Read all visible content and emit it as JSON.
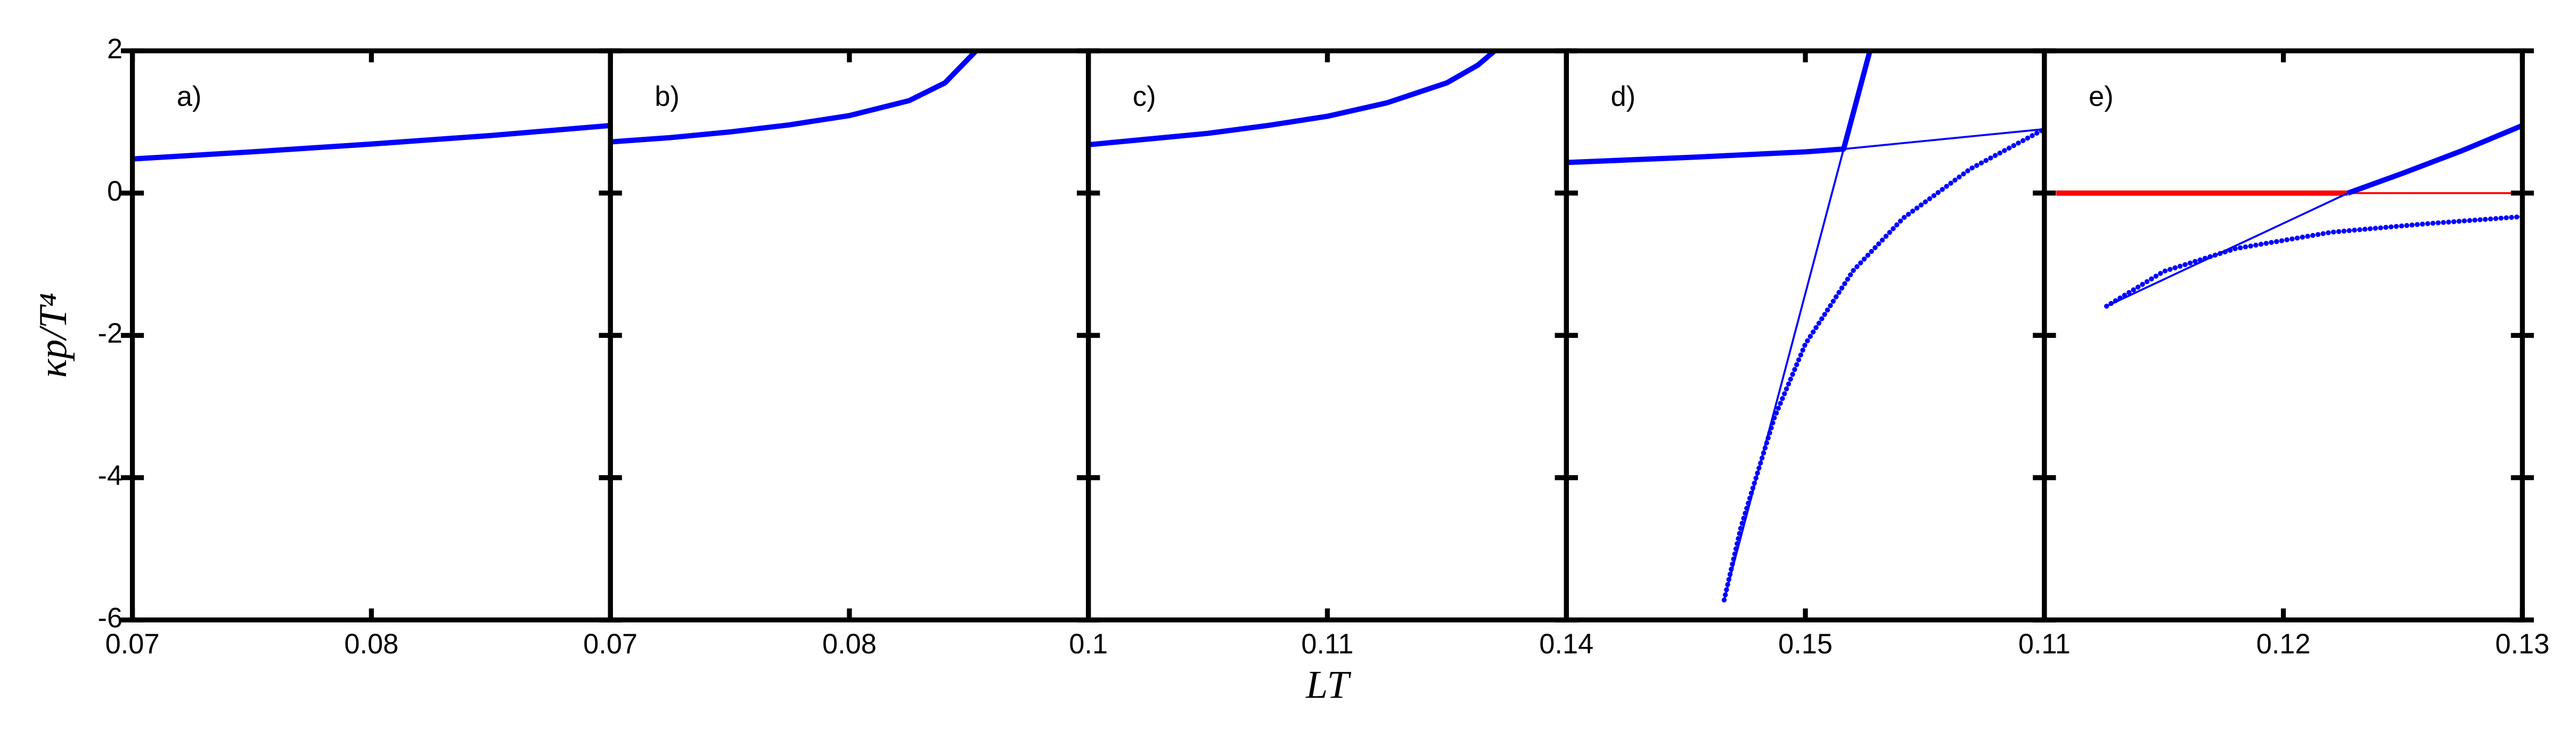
{
  "chart_data": [
    {
      "type": "line",
      "label": "a)",
      "ylabel": "κp/T⁴",
      "xlim": [
        0.07,
        0.09
      ],
      "xticks": [
        0.07,
        0.08
      ],
      "ylim": [
        -6,
        2
      ],
      "yticks": [
        -6,
        -4,
        -2,
        0,
        2
      ],
      "series": [
        {
          "color": "#0000ff",
          "style": "thick",
          "x": [
            0.07,
            0.075,
            0.08,
            0.085,
            0.09
          ],
          "values": [
            0.48,
            0.58,
            0.69,
            0.81,
            0.95
          ]
        }
      ]
    },
    {
      "type": "line",
      "label": "b)",
      "xlim": [
        0.07,
        0.09
      ],
      "xticks": [
        0.07,
        0.08
      ],
      "ylim": [
        -6,
        2
      ],
      "series": [
        {
          "color": "#0000ff",
          "style": "thick",
          "x": [
            0.07,
            0.0725,
            0.075,
            0.0775,
            0.08,
            0.0825,
            0.084,
            0.0853
          ],
          "values": [
            0.72,
            0.78,
            0.86,
            0.96,
            1.09,
            1.3,
            1.55,
            2.0
          ]
        }
      ]
    },
    {
      "type": "line",
      "label": "c)",
      "xlabel": "LT",
      "xlim": [
        0.1,
        0.12
      ],
      "xticks": [
        0.1,
        0.11
      ],
      "ylim": [
        -6,
        2
      ],
      "series": [
        {
          "color": "#0000ff",
          "style": "thick",
          "x": [
            0.1,
            0.1025,
            0.105,
            0.1075,
            0.11,
            0.1125,
            0.115,
            0.1163,
            0.117
          ],
          "values": [
            0.68,
            0.76,
            0.84,
            0.95,
            1.08,
            1.27,
            1.55,
            1.8,
            2.0
          ]
        }
      ]
    },
    {
      "type": "line",
      "label": "d)",
      "xlim": [
        0.14,
        0.16
      ],
      "xticks": [
        0.14,
        0.15
      ],
      "ylim": [
        -6,
        2
      ],
      "series": [
        {
          "color": "#0000ff",
          "style": "thick",
          "x": [
            0.14,
            0.145,
            0.15,
            0.1516,
            0.1527
          ],
          "values": [
            0.43,
            0.5,
            0.58,
            0.62,
            2.0
          ]
        },
        {
          "color": "#0000ff",
          "style": "thin",
          "x": [
            0.1466,
            0.1516,
            0.16
          ],
          "values": [
            -5.72,
            0.62,
            0.9
          ]
        },
        {
          "color": "#0000ff",
          "style": "dotted",
          "x": [
            0.1466,
            0.1473,
            0.1487,
            0.15,
            0.152,
            0.1541,
            0.1569,
            0.16
          ],
          "values": [
            -5.72,
            -4.7,
            -3.16,
            -2.12,
            -1.09,
            -0.35,
            0.34,
            0.9
          ]
        }
      ]
    },
    {
      "type": "line",
      "label": "e)",
      "xlim": [
        0.11,
        0.13
      ],
      "xticks": [
        0.11,
        0.12,
        0.13
      ],
      "ylim": [
        -6,
        2
      ],
      "series": [
        {
          "color": "#ff0000",
          "style": "thick",
          "x": [
            0.1105,
            0.1227
          ],
          "values": [
            0,
            0
          ]
        },
        {
          "color": "#ff0000",
          "style": "thin",
          "x": [
            0.1227,
            0.13
          ],
          "values": [
            0,
            0
          ]
        },
        {
          "color": "#0000ff",
          "style": "thick",
          "x": [
            0.1227,
            0.125,
            0.1275,
            0.13
          ],
          "values": [
            0,
            0.28,
            0.6,
            0.95
          ]
        },
        {
          "color": "#0000ff",
          "style": "thin",
          "x": [
            0.1126,
            0.1227
          ],
          "values": [
            -1.59,
            0
          ]
        },
        {
          "color": "#0000ff",
          "style": "dotted",
          "x": [
            0.1126,
            0.115,
            0.118,
            0.122,
            0.126,
            0.13
          ],
          "values": [
            -1.59,
            -1.1,
            -0.78,
            -0.55,
            -0.43,
            -0.33
          ]
        }
      ]
    }
  ]
}
